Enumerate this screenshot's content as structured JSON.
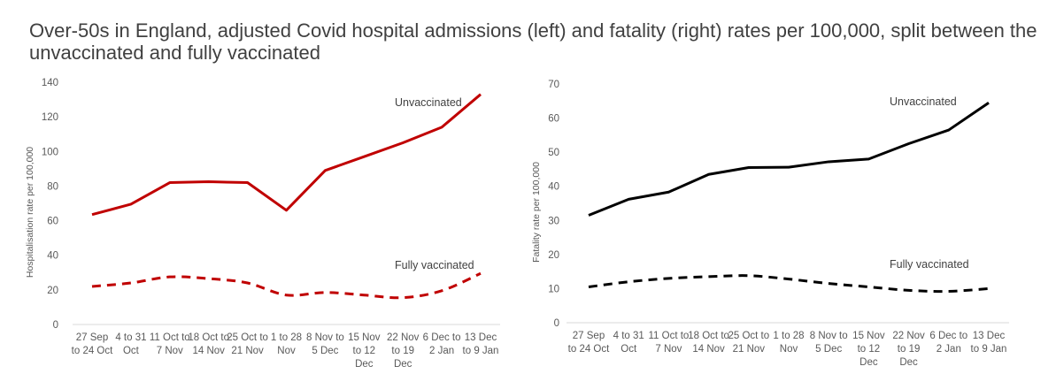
{
  "title": "Over-50s in England, adjusted Covid hospital admissions (left) and fatality (right) rates per 100,000, split between the unvaccinated and fully vaccinated",
  "chart_data": [
    {
      "type": "line",
      "ylabel": "Hospitalisation rate per 100,000",
      "ylim": [
        0,
        140
      ],
      "yticks": [
        0,
        20,
        40,
        60,
        80,
        100,
        120,
        140
      ],
      "categories": [
        [
          "27 Sep",
          "to 24 Oct"
        ],
        [
          "4 to 31",
          "Oct"
        ],
        [
          "11 Oct to",
          "7 Nov"
        ],
        [
          "18 Oct to",
          "14 Nov"
        ],
        [
          "25 Oct to",
          "21 Nov"
        ],
        [
          "1 to 28",
          "Nov"
        ],
        [
          "8 Nov to",
          "5 Dec"
        ],
        [
          "15 Nov",
          "to 12",
          "Dec"
        ],
        [
          "22 Nov",
          "to 19",
          "Dec"
        ],
        [
          "6 Dec to",
          "2 Jan"
        ],
        [
          "13 Dec",
          "to 9 Jan"
        ]
      ],
      "color": "#c00000",
      "series": [
        {
          "name": "Unvaccinated",
          "style": "solid",
          "values": [
            63.5,
            69.5,
            82,
            82.5,
            82,
            66,
            89,
            97,
            105,
            114,
            133
          ]
        },
        {
          "name": "Fully vaccinated",
          "style": "dashed",
          "values": [
            22,
            24,
            27.5,
            26.5,
            24,
            17,
            18.5,
            17,
            15.5,
            19.5,
            29.5
          ]
        }
      ]
    },
    {
      "type": "line",
      "ylabel": "Fatality rate per 100,000",
      "ylim": [
        0,
        70
      ],
      "yticks": [
        0,
        10,
        20,
        30,
        40,
        50,
        60,
        70
      ],
      "categories": [
        [
          "27 Sep",
          "to 24 Oct"
        ],
        [
          "4 to 31",
          "Oct"
        ],
        [
          "11 Oct to",
          "7 Nov"
        ],
        [
          "18 Oct to",
          "14 Nov"
        ],
        [
          "25 Oct to",
          "21 Nov"
        ],
        [
          "1 to 28",
          "Nov"
        ],
        [
          "8 Nov to",
          "5 Dec"
        ],
        [
          "15 Nov",
          "to 12",
          "Dec"
        ],
        [
          "22 Nov",
          "to 19",
          "Dec"
        ],
        [
          "6 Dec to",
          "2 Jan"
        ],
        [
          "13 Dec",
          "to 9 Jan"
        ]
      ],
      "color": "#000000",
      "series": [
        {
          "name": "Unvaccinated",
          "style": "solid",
          "values": [
            31.5,
            36.2,
            38.3,
            43.5,
            45.5,
            45.6,
            47.2,
            48,
            52.5,
            56.5,
            64.5
          ]
        },
        {
          "name": "Fully vaccinated",
          "style": "dashed",
          "values": [
            10.5,
            12,
            13,
            13.5,
            13.8,
            12.8,
            11.5,
            10.5,
            9.5,
            9.2,
            10
          ]
        }
      ]
    }
  ]
}
